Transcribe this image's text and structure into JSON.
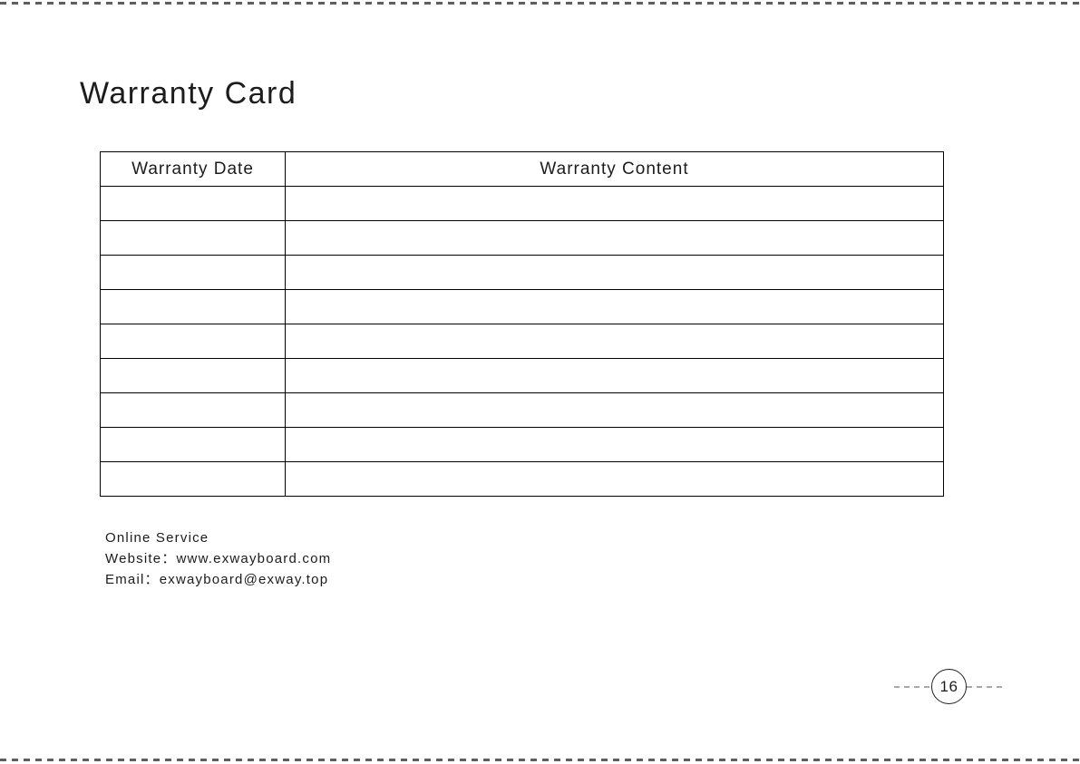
{
  "page": {
    "title": "Warranty Card",
    "page_number": "16"
  },
  "table": {
    "headers": [
      "Warranty Date",
      "Warranty Content"
    ],
    "row_count": 9,
    "rows": [
      [
        "",
        ""
      ],
      [
        "",
        ""
      ],
      [
        "",
        ""
      ],
      [
        "",
        ""
      ],
      [
        "",
        ""
      ],
      [
        "",
        ""
      ],
      [
        "",
        ""
      ],
      [
        "",
        ""
      ],
      [
        "",
        ""
      ]
    ]
  },
  "contact": {
    "line1": "Online Service",
    "line2": "Website：www.exwayboard.com",
    "line3": "Email：exwayboard@exway.top"
  },
  "colors": {
    "text": "#1c1c1c",
    "table_border": "#000000",
    "page_dash_border": "#5e5e5e",
    "marker_dash": "#a9a9a9",
    "background": "#ffffff"
  }
}
